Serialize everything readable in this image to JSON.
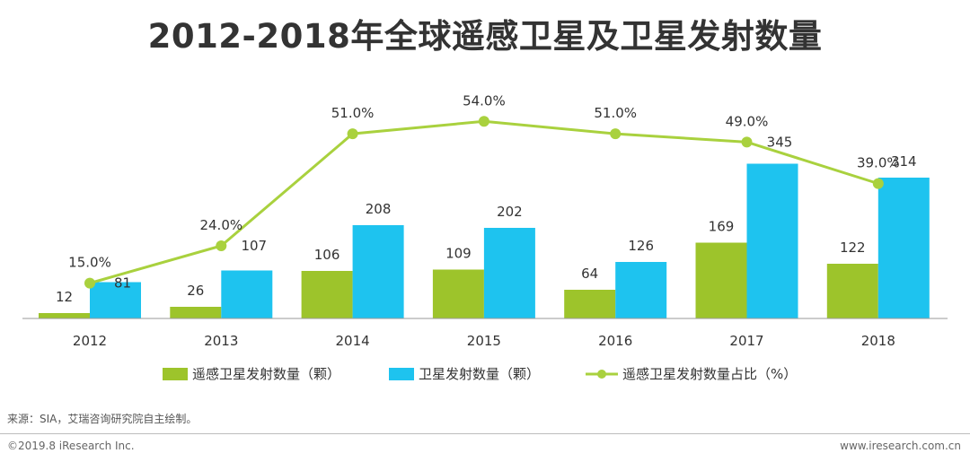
{
  "chart_data": {
    "type": "bar+line",
    "title": "2012-2018年全球遥感卫星及卫星发射数量",
    "categories": [
      "2012",
      "2013",
      "2014",
      "2015",
      "2016",
      "2017",
      "2018"
    ],
    "series": [
      {
        "name": "遥感卫星发射数量（颗）",
        "type": "bar",
        "axis": "left",
        "color": "#9dc42b",
        "values": [
          12,
          26,
          106,
          109,
          64,
          169,
          122
        ]
      },
      {
        "name": "卫星发射数量（颗）",
        "type": "bar",
        "axis": "left",
        "color": "#1ec3ef",
        "values": [
          81,
          107,
          208,
          202,
          126,
          345,
          314
        ]
      },
      {
        "name": "遥感卫星发射数量占比（%）",
        "type": "line",
        "axis": "right",
        "color": "#a9d13e",
        "values": [
          15.0,
          24.0,
          51.0,
          54.0,
          51.0,
          49.0,
          39.0
        ],
        "labels": [
          "15.0%",
          "24.0%",
          "51.0%",
          "54.0%",
          "51.0%",
          "49.0%",
          "39.0%"
        ]
      }
    ],
    "ylim_left": [
      0,
      400
    ],
    "ylim_right": [
      0,
      80
    ],
    "legend_position": "bottom-center",
    "grid": false
  },
  "source_note": "来源：SIA，艾瑞咨询研究院自主绘制。",
  "footer": {
    "copyright": "©2019.8 iResearch Inc.",
    "website": "www.iresearch.com.cn"
  }
}
